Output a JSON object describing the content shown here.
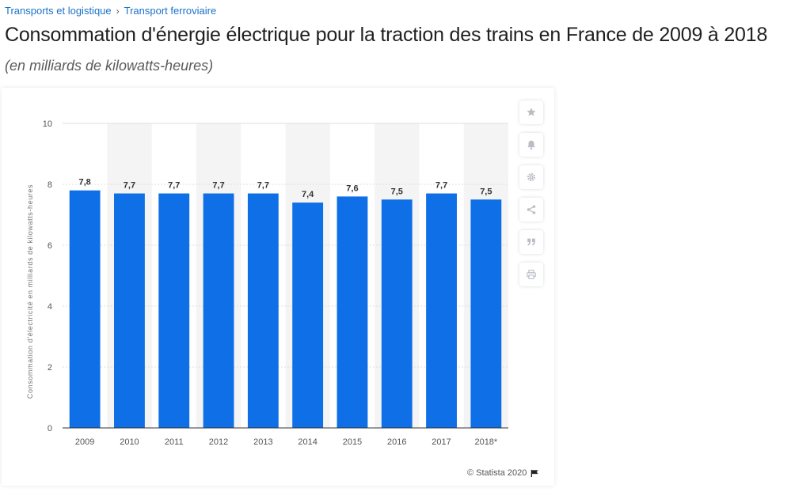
{
  "breadcrumb": {
    "items": [
      "Transports et logistique",
      "Transport ferroviaire"
    ],
    "separator": "›"
  },
  "title": "Consommation d'énergie électrique pour la traction des trains en France de 2009 à 2018",
  "subtitle": "(en milliards de kilowatts-heures)",
  "toolbar": {
    "icons": [
      "star-icon",
      "bell-icon",
      "gear-icon",
      "share-icon",
      "quote-icon",
      "print-icon"
    ]
  },
  "credit": "© Statista 2020",
  "colors": {
    "bar": "#0f6fe6",
    "link": "#1a73c8",
    "band": "#f4f4f4",
    "grid": "#dedede"
  },
  "chart_data": {
    "type": "bar",
    "categories": [
      "2009",
      "2010",
      "2011",
      "2012",
      "2013",
      "2014",
      "2015",
      "2016",
      "2017",
      "2018*"
    ],
    "values": [
      7.8,
      7.7,
      7.7,
      7.7,
      7.7,
      7.4,
      7.6,
      7.5,
      7.7,
      7.5
    ],
    "value_labels": [
      "7,8",
      "7,7",
      "7,7",
      "7,7",
      "7,7",
      "7,4",
      "7,6",
      "7,5",
      "7,7",
      "7,5"
    ],
    "ylabel": "Consommation d'électricité en milliards de kilowatts-heures",
    "xlabel": "",
    "ylim": [
      0,
      10
    ],
    "yticks": [
      0,
      2,
      4,
      6,
      8,
      10
    ],
    "grid": true,
    "legend": "none"
  }
}
